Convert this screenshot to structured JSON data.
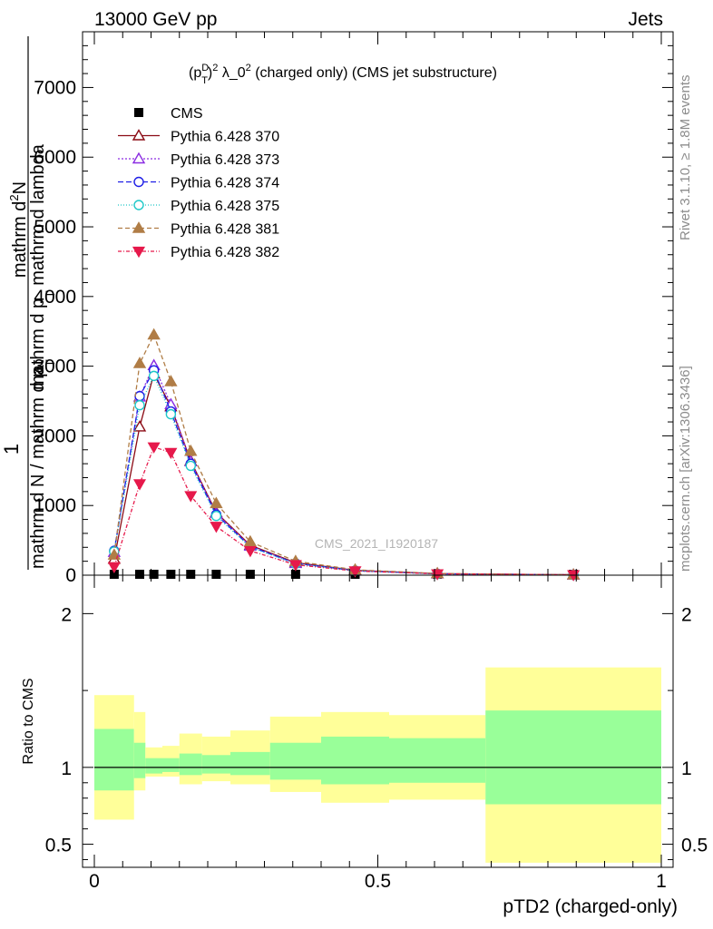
{
  "header": {
    "energy_label": "13000 GeV pp",
    "process_label": "Jets"
  },
  "side_labels": {
    "rivet": "Rivet 3.1.10, ≥ 1.8M events",
    "mcplots": "mcplots.cern.ch [arXiv:1306.3436]"
  },
  "colors": {
    "cms": "#000000",
    "p370": "#8b0a14",
    "p373": "#8a2be2",
    "p374": "#1e1ee6",
    "p375": "#1ec8c8",
    "p381": "#b07d46",
    "p382": "#e6194b",
    "band_outer": "#ffff99",
    "band_inner": "#99ff99"
  },
  "chart_data": [
    {
      "type": "line",
      "title": "(p_T^D)^2 λ_0^2 (charged only) (CMS jet substructure)",
      "title_parts": {
        "p": "(p",
        "sup1": "D",
        "sub1": "T",
        "close": ")",
        "sup2": "2",
        "mid": " λ_0",
        "sup3": "2",
        "rest": " (charged only) (CMS jet substructure)"
      },
      "ylabel_parts": {
        "one": "1",
        "den": "mathrm d N / mathrm d p",
        "den_sub": "T",
        "num": "mathrm d",
        "num_sup": "2",
        "num_n": "N",
        "den2": "mathrm d p",
        "den2_sub": "T",
        "den2_rest": " mathrm d lambda"
      },
      "watermark": "CMS_2021_I1920187",
      "xlim": [
        0,
        1
      ],
      "ylim": [
        0,
        7800
      ],
      "yticks": [
        0,
        1000,
        2000,
        3000,
        4000,
        5000,
        6000,
        7000
      ],
      "ytick_labels": [
        "0",
        "1000",
        "2000",
        "3000",
        "4000",
        "5000",
        "6000",
        "7000"
      ],
      "legend_position": "top-left",
      "x": [
        0.035,
        0.08,
        0.105,
        0.135,
        0.17,
        0.215,
        0.275,
        0.355,
        0.46,
        0.605,
        0.845
      ],
      "series": [
        {
          "name": "CMS",
          "key": "cms",
          "marker": "square",
          "dash": "none",
          "values": [
            0,
            0,
            0,
            0,
            0,
            0,
            0,
            0,
            0,
            0,
            0
          ]
        },
        {
          "name": "Pythia 6.428 370",
          "key": "p370",
          "marker": "triangle-open",
          "dash": "solid",
          "values": [
            230,
            2130,
            2890,
            2420,
            1640,
            900,
            430,
            180,
            70,
            22,
            6
          ]
        },
        {
          "name": "Pythia 6.428 373",
          "key": "p373",
          "marker": "triangle-open",
          "dash": "2,2",
          "values": [
            330,
            2560,
            3010,
            2450,
            1630,
            890,
            420,
            170,
            65,
            20,
            5
          ]
        },
        {
          "name": "Pythia 6.428 374",
          "key": "p374",
          "marker": "circle-open",
          "dash": "6,3",
          "values": [
            350,
            2570,
            2940,
            2350,
            1600,
            870,
            410,
            170,
            65,
            20,
            5
          ]
        },
        {
          "name": "Pythia 6.428 375",
          "key": "p375",
          "marker": "circle-open",
          "dash": "1,2",
          "values": [
            340,
            2440,
            2860,
            2310,
            1570,
            850,
            400,
            165,
            63,
            19,
            5
          ]
        },
        {
          "name": "Pythia 6.428 381",
          "key": "p381",
          "marker": "triangle-filled",
          "dash": "5,3",
          "values": [
            290,
            3040,
            3450,
            2780,
            1780,
            1030,
            480,
            200,
            78,
            24,
            6
          ]
        },
        {
          "name": "Pythia 6.428 382",
          "key": "p382",
          "marker": "triangledown-filled",
          "dash": "4,2,1,2",
          "values": [
            120,
            1310,
            1840,
            1760,
            1140,
            700,
            350,
            150,
            60,
            19,
            5
          ]
        }
      ]
    },
    {
      "type": "area",
      "ylabel": "Ratio to CMS",
      "xlabel": "pTD2 (charged-only)",
      "ylim": [
        0.35,
        2.25
      ],
      "yticks": [
        0.5,
        1,
        2
      ],
      "ytick_labels": [
        "0.5",
        "1",
        "2"
      ],
      "xticks": [
        0,
        0.5,
        1
      ],
      "xtick_labels": [
        "0",
        "0.5",
        "1"
      ],
      "bin_edges": [
        0,
        0.07,
        0.09,
        0.12,
        0.15,
        0.19,
        0.24,
        0.31,
        0.4,
        0.52,
        0.69,
        1.0
      ],
      "outer_band": {
        "lo": [
          0.66,
          0.85,
          0.94,
          0.94,
          0.89,
          0.91,
          0.89,
          0.84,
          0.77,
          0.79,
          0.38
        ],
        "hi": [
          1.47,
          1.36,
          1.13,
          1.14,
          1.22,
          1.2,
          1.24,
          1.33,
          1.36,
          1.34,
          1.65
        ]
      },
      "inner_band": {
        "lo": [
          0.85,
          0.93,
          0.96,
          0.97,
          0.95,
          0.96,
          0.95,
          0.92,
          0.89,
          0.9,
          0.76
        ],
        "hi": [
          1.25,
          1.16,
          1.06,
          1.06,
          1.09,
          1.08,
          1.1,
          1.16,
          1.2,
          1.19,
          1.37
        ]
      },
      "reference": 1
    }
  ]
}
